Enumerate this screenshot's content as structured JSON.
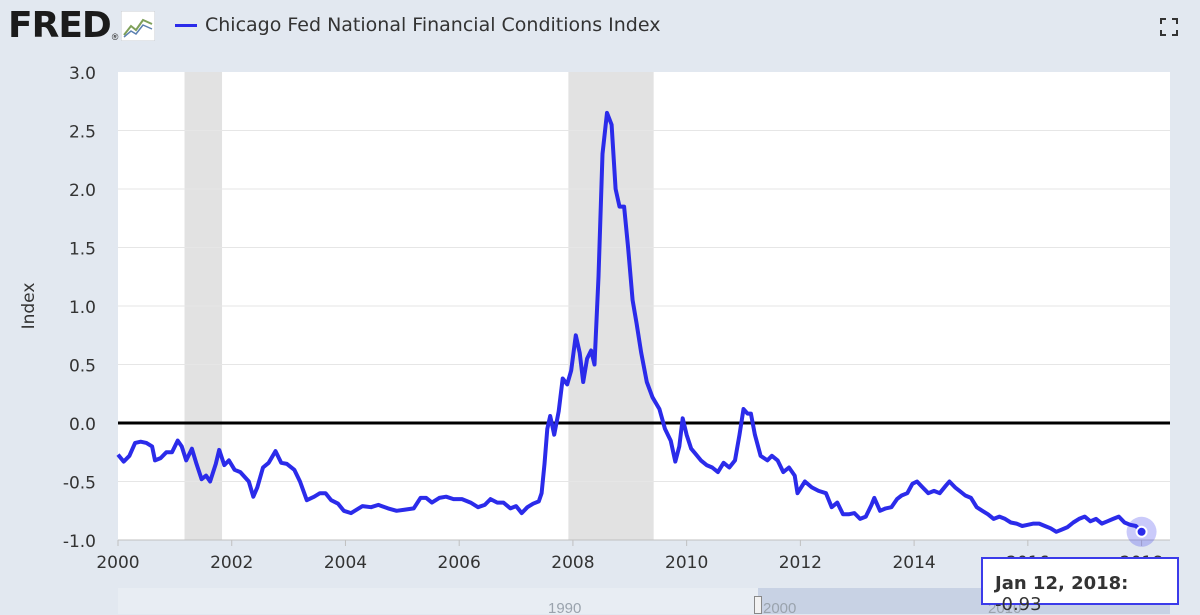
{
  "header": {
    "logo_text": "FRED",
    "logo_registered": "®",
    "series_title": "Chicago Fed National Financial Conditions Index",
    "fullscreen_icon": "expand-icon"
  },
  "colors": {
    "series_line": "#2b2bea",
    "recession_band": "#e2e2e2",
    "zero_line": "#000000",
    "background": "#e2e8f0",
    "plot_bg": "#ffffff"
  },
  "tooltip": {
    "date": "Jan 12, 2018:",
    "value": "-0.93"
  },
  "navigator": {
    "labels": [
      "1990",
      "2000",
      "2010"
    ]
  },
  "chart_data": {
    "type": "line",
    "title": "Chicago Fed National Financial Conditions Index",
    "ylabel": "Index",
    "xlabel": "",
    "xlim": [
      2000.0,
      2018.5
    ],
    "ylim": [
      -1.0,
      3.0
    ],
    "x_ticks": [
      "2000",
      "2002",
      "2004",
      "2006",
      "2008",
      "2010",
      "2012",
      "2014",
      "2016",
      "2018"
    ],
    "y_ticks": [
      "3.0",
      "2.5",
      "2.0",
      "1.5",
      "1.0",
      "0.5",
      "0.0",
      "-0.5",
      "-1.0"
    ],
    "recessions": [
      [
        2001.17,
        2001.83
      ],
      [
        2007.92,
        2009.42
      ]
    ],
    "reference_line": 0.0,
    "series": [
      {
        "name": "Chicago Fed National Financial Conditions Index",
        "points": [
          [
            2000.0,
            -0.27
          ],
          [
            2000.1,
            -0.33
          ],
          [
            2000.2,
            -0.28
          ],
          [
            2000.3,
            -0.17
          ],
          [
            2000.4,
            -0.16
          ],
          [
            2000.5,
            -0.17
          ],
          [
            2000.6,
            -0.2
          ],
          [
            2000.65,
            -0.32
          ],
          [
            2000.75,
            -0.3
          ],
          [
            2000.85,
            -0.25
          ],
          [
            2000.95,
            -0.25
          ],
          [
            2001.05,
            -0.15
          ],
          [
            2001.12,
            -0.2
          ],
          [
            2001.2,
            -0.32
          ],
          [
            2001.3,
            -0.22
          ],
          [
            2001.38,
            -0.35
          ],
          [
            2001.47,
            -0.48
          ],
          [
            2001.55,
            -0.45
          ],
          [
            2001.62,
            -0.5
          ],
          [
            2001.72,
            -0.35
          ],
          [
            2001.78,
            -0.23
          ],
          [
            2001.87,
            -0.36
          ],
          [
            2001.95,
            -0.32
          ],
          [
            2002.05,
            -0.4
          ],
          [
            2002.15,
            -0.42
          ],
          [
            2002.3,
            -0.5
          ],
          [
            2002.38,
            -0.63
          ],
          [
            2002.45,
            -0.55
          ],
          [
            2002.55,
            -0.38
          ],
          [
            2002.65,
            -0.34
          ],
          [
            2002.77,
            -0.24
          ],
          [
            2002.87,
            -0.34
          ],
          [
            2002.97,
            -0.35
          ],
          [
            2003.1,
            -0.4
          ],
          [
            2003.2,
            -0.5
          ],
          [
            2003.32,
            -0.66
          ],
          [
            2003.45,
            -0.63
          ],
          [
            2003.55,
            -0.6
          ],
          [
            2003.65,
            -0.6
          ],
          [
            2003.75,
            -0.66
          ],
          [
            2003.87,
            -0.69
          ],
          [
            2003.97,
            -0.75
          ],
          [
            2004.1,
            -0.77
          ],
          [
            2004.2,
            -0.74
          ],
          [
            2004.3,
            -0.71
          ],
          [
            2004.45,
            -0.72
          ],
          [
            2004.58,
            -0.7
          ],
          [
            2004.75,
            -0.73
          ],
          [
            2004.9,
            -0.75
          ],
          [
            2005.05,
            -0.74
          ],
          [
            2005.2,
            -0.73
          ],
          [
            2005.32,
            -0.64
          ],
          [
            2005.42,
            -0.64
          ],
          [
            2005.52,
            -0.68
          ],
          [
            2005.65,
            -0.64
          ],
          [
            2005.77,
            -0.63
          ],
          [
            2005.9,
            -0.65
          ],
          [
            2006.05,
            -0.65
          ],
          [
            2006.2,
            -0.68
          ],
          [
            2006.33,
            -0.72
          ],
          [
            2006.45,
            -0.7
          ],
          [
            2006.55,
            -0.65
          ],
          [
            2006.67,
            -0.68
          ],
          [
            2006.78,
            -0.68
          ],
          [
            2006.9,
            -0.73
          ],
          [
            2007.0,
            -0.71
          ],
          [
            2007.1,
            -0.77
          ],
          [
            2007.2,
            -0.72
          ],
          [
            2007.3,
            -0.69
          ],
          [
            2007.4,
            -0.67
          ],
          [
            2007.45,
            -0.6
          ],
          [
            2007.5,
            -0.35
          ],
          [
            2007.55,
            -0.05
          ],
          [
            2007.6,
            0.06
          ],
          [
            2007.67,
            -0.1
          ],
          [
            2007.75,
            0.1
          ],
          [
            2007.82,
            0.38
          ],
          [
            2007.9,
            0.33
          ],
          [
            2007.97,
            0.45
          ],
          [
            2008.05,
            0.75
          ],
          [
            2008.12,
            0.6
          ],
          [
            2008.18,
            0.35
          ],
          [
            2008.25,
            0.55
          ],
          [
            2008.32,
            0.62
          ],
          [
            2008.38,
            0.5
          ],
          [
            2008.45,
            1.25
          ],
          [
            2008.52,
            2.3
          ],
          [
            2008.6,
            2.65
          ],
          [
            2008.68,
            2.55
          ],
          [
            2008.75,
            2.0
          ],
          [
            2008.82,
            1.85
          ],
          [
            2008.9,
            1.85
          ],
          [
            2008.97,
            1.5
          ],
          [
            2009.05,
            1.05
          ],
          [
            2009.12,
            0.85
          ],
          [
            2009.2,
            0.6
          ],
          [
            2009.3,
            0.35
          ],
          [
            2009.4,
            0.22
          ],
          [
            2009.52,
            0.12
          ],
          [
            2009.62,
            -0.05
          ],
          [
            2009.72,
            -0.15
          ],
          [
            2009.8,
            -0.33
          ],
          [
            2009.87,
            -0.2
          ],
          [
            2009.93,
            0.04
          ],
          [
            2010.0,
            -0.1
          ],
          [
            2010.08,
            -0.22
          ],
          [
            2010.15,
            -0.26
          ],
          [
            2010.25,
            -0.32
          ],
          [
            2010.35,
            -0.36
          ],
          [
            2010.45,
            -0.38
          ],
          [
            2010.55,
            -0.42
          ],
          [
            2010.65,
            -0.34
          ],
          [
            2010.75,
            -0.38
          ],
          [
            2010.85,
            -0.32
          ],
          [
            2010.93,
            -0.1
          ],
          [
            2011.0,
            0.12
          ],
          [
            2011.07,
            0.08
          ],
          [
            2011.13,
            0.08
          ],
          [
            2011.2,
            -0.1
          ],
          [
            2011.3,
            -0.28
          ],
          [
            2011.42,
            -0.32
          ],
          [
            2011.5,
            -0.28
          ],
          [
            2011.6,
            -0.32
          ],
          [
            2011.7,
            -0.42
          ],
          [
            2011.8,
            -0.38
          ],
          [
            2011.9,
            -0.45
          ],
          [
            2011.95,
            -0.6
          ],
          [
            2012.08,
            -0.5
          ],
          [
            2012.2,
            -0.55
          ],
          [
            2012.32,
            -0.58
          ],
          [
            2012.45,
            -0.6
          ],
          [
            2012.55,
            -0.72
          ],
          [
            2012.65,
            -0.68
          ],
          [
            2012.75,
            -0.78
          ],
          [
            2012.85,
            -0.78
          ],
          [
            2012.95,
            -0.77
          ],
          [
            2013.05,
            -0.82
          ],
          [
            2013.15,
            -0.8
          ],
          [
            2013.25,
            -0.7
          ],
          [
            2013.3,
            -0.64
          ],
          [
            2013.4,
            -0.75
          ],
          [
            2013.5,
            -0.73
          ],
          [
            2013.6,
            -0.72
          ],
          [
            2013.7,
            -0.65
          ],
          [
            2013.78,
            -0.62
          ],
          [
            2013.88,
            -0.6
          ],
          [
            2013.97,
            -0.52
          ],
          [
            2014.05,
            -0.5
          ],
          [
            2014.15,
            -0.55
          ],
          [
            2014.25,
            -0.6
          ],
          [
            2014.35,
            -0.58
          ],
          [
            2014.45,
            -0.6
          ],
          [
            2014.55,
            -0.54
          ],
          [
            2014.62,
            -0.5
          ],
          [
            2014.72,
            -0.55
          ],
          [
            2014.8,
            -0.58
          ],
          [
            2014.9,
            -0.62
          ],
          [
            2015.0,
            -0.64
          ],
          [
            2015.1,
            -0.72
          ],
          [
            2015.2,
            -0.75
          ],
          [
            2015.3,
            -0.78
          ],
          [
            2015.4,
            -0.82
          ],
          [
            2015.5,
            -0.8
          ],
          [
            2015.6,
            -0.82
          ],
          [
            2015.7,
            -0.85
          ],
          [
            2015.8,
            -0.86
          ],
          [
            2015.9,
            -0.88
          ],
          [
            2016.0,
            -0.87
          ],
          [
            2016.1,
            -0.86
          ],
          [
            2016.2,
            -0.86
          ],
          [
            2016.3,
            -0.88
          ],
          [
            2016.4,
            -0.9
          ],
          [
            2016.5,
            -0.93
          ],
          [
            2016.6,
            -0.91
          ],
          [
            2016.7,
            -0.89
          ],
          [
            2016.8,
            -0.85
          ],
          [
            2016.9,
            -0.82
          ],
          [
            2017.0,
            -0.8
          ],
          [
            2017.1,
            -0.84
          ],
          [
            2017.2,
            -0.82
          ],
          [
            2017.3,
            -0.86
          ],
          [
            2017.4,
            -0.84
          ],
          [
            2017.5,
            -0.82
          ],
          [
            2017.6,
            -0.8
          ],
          [
            2017.7,
            -0.85
          ],
          [
            2017.8,
            -0.87
          ],
          [
            2017.9,
            -0.88
          ],
          [
            2018.0,
            -0.93
          ]
        ]
      }
    ]
  }
}
